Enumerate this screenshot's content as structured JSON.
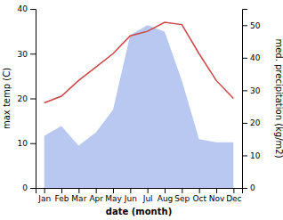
{
  "chart_data": {
    "type": "line",
    "categories": [
      "Jan",
      "Feb",
      "Mar",
      "Apr",
      "May",
      "Jun",
      "Jul",
      "Aug",
      "Sep",
      "Oct",
      "Nov",
      "Dec"
    ],
    "xlabel": "date (month)",
    "ylabel": "max temp (C)",
    "y2label": "med. precipitation (kg/m2)",
    "ylim": [
      0,
      40
    ],
    "yticks": [
      0,
      10,
      20,
      30,
      40
    ],
    "y2lim": [
      0,
      55
    ],
    "y2ticks": [
      0,
      10,
      20,
      30,
      40,
      50
    ],
    "grid": false,
    "series": [
      {
        "type": "area",
        "axis": "y2",
        "color": "#b8c8f0",
        "values": [
          16,
          19,
          13,
          17,
          24,
          47,
          50,
          48,
          33,
          15,
          14,
          14
        ]
      },
      {
        "type": "line",
        "color": "#cc4444",
        "values": [
          19,
          20.5,
          24,
          27,
          30,
          34,
          35,
          37,
          36.5,
          30,
          24,
          20
        ]
      }
    ]
  }
}
